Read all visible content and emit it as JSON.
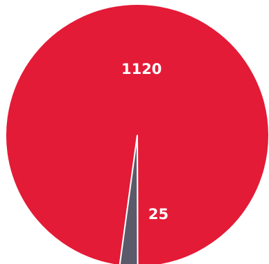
{
  "chart_data": {
    "type": "pie",
    "title": "",
    "slices": [
      {
        "value": 1120,
        "label": "1120",
        "color": "#e31b37"
      },
      {
        "value": 25,
        "label": "25",
        "color": "#5b5a6a"
      }
    ],
    "border_color": "#ffffff",
    "legend": "none"
  }
}
